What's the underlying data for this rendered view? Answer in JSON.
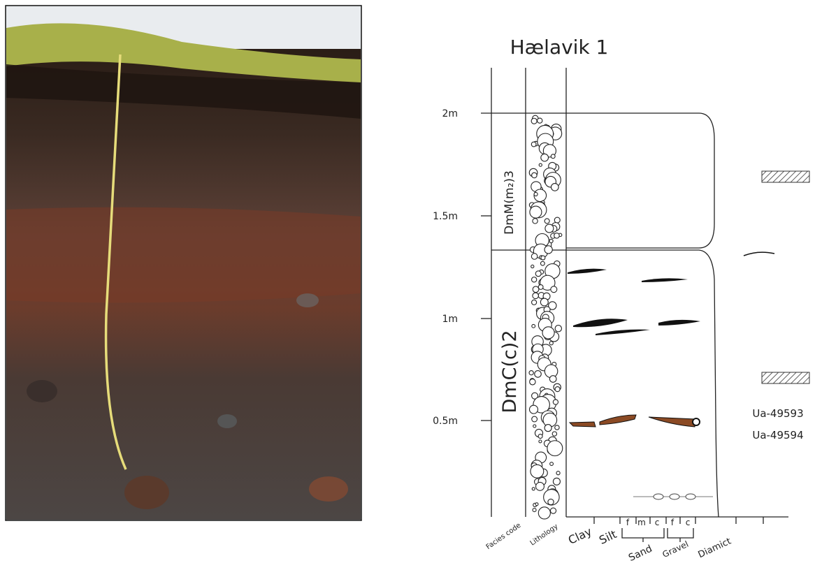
{
  "title": "Hælavik 1",
  "depth_labels": [
    "2m",
    "1.5m",
    "1m",
    "0.5m"
  ],
  "facies": [
    "DmM(m₂)3",
    "DmC(c)2"
  ],
  "column_headers": [
    "Facies code",
    "Lithology"
  ],
  "grain_sizes": [
    "Clay",
    "Silt",
    "Sand",
    "Gravel",
    "Diamict"
  ],
  "sub_sizes": [
    "f",
    "m",
    "c",
    "f",
    "c"
  ],
  "samples": [
    "Ua-49593",
    "Ua-49594"
  ]
}
